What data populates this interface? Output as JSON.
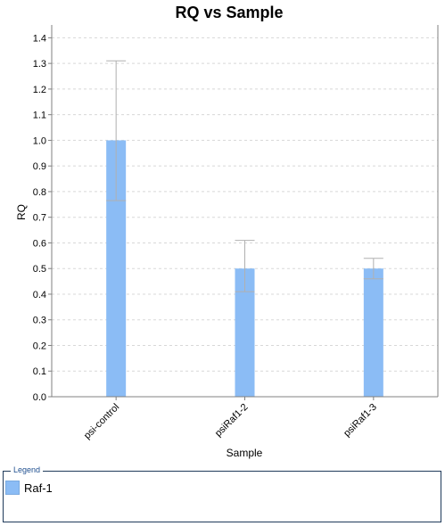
{
  "chart_data": {
    "type": "bar",
    "title": "RQ vs Sample",
    "xlabel": "Sample",
    "ylabel": "RQ",
    "categories": [
      "psi-control",
      "psiRaf1-2",
      "psiRaf1-3"
    ],
    "series": [
      {
        "name": "Raf-1",
        "values": [
          1.0,
          0.5,
          0.5
        ],
        "error_low": [
          0.765,
          0.41,
          0.46
        ],
        "error_high": [
          1.31,
          0.61,
          0.54
        ]
      }
    ],
    "ylim": [
      0,
      1.45
    ],
    "yticks": [
      "0.0",
      "0.1",
      "0.2",
      "0.3",
      "0.4",
      "0.5",
      "0.6",
      "0.7",
      "0.8",
      "0.9",
      "1.0",
      "1.1",
      "1.2",
      "1.3",
      "1.4"
    ],
    "grid": true,
    "legend_position": "bottom",
    "bar_color": "#8bbcf5"
  },
  "legend": {
    "title": "Legend",
    "items": [
      "Raf-1"
    ]
  }
}
